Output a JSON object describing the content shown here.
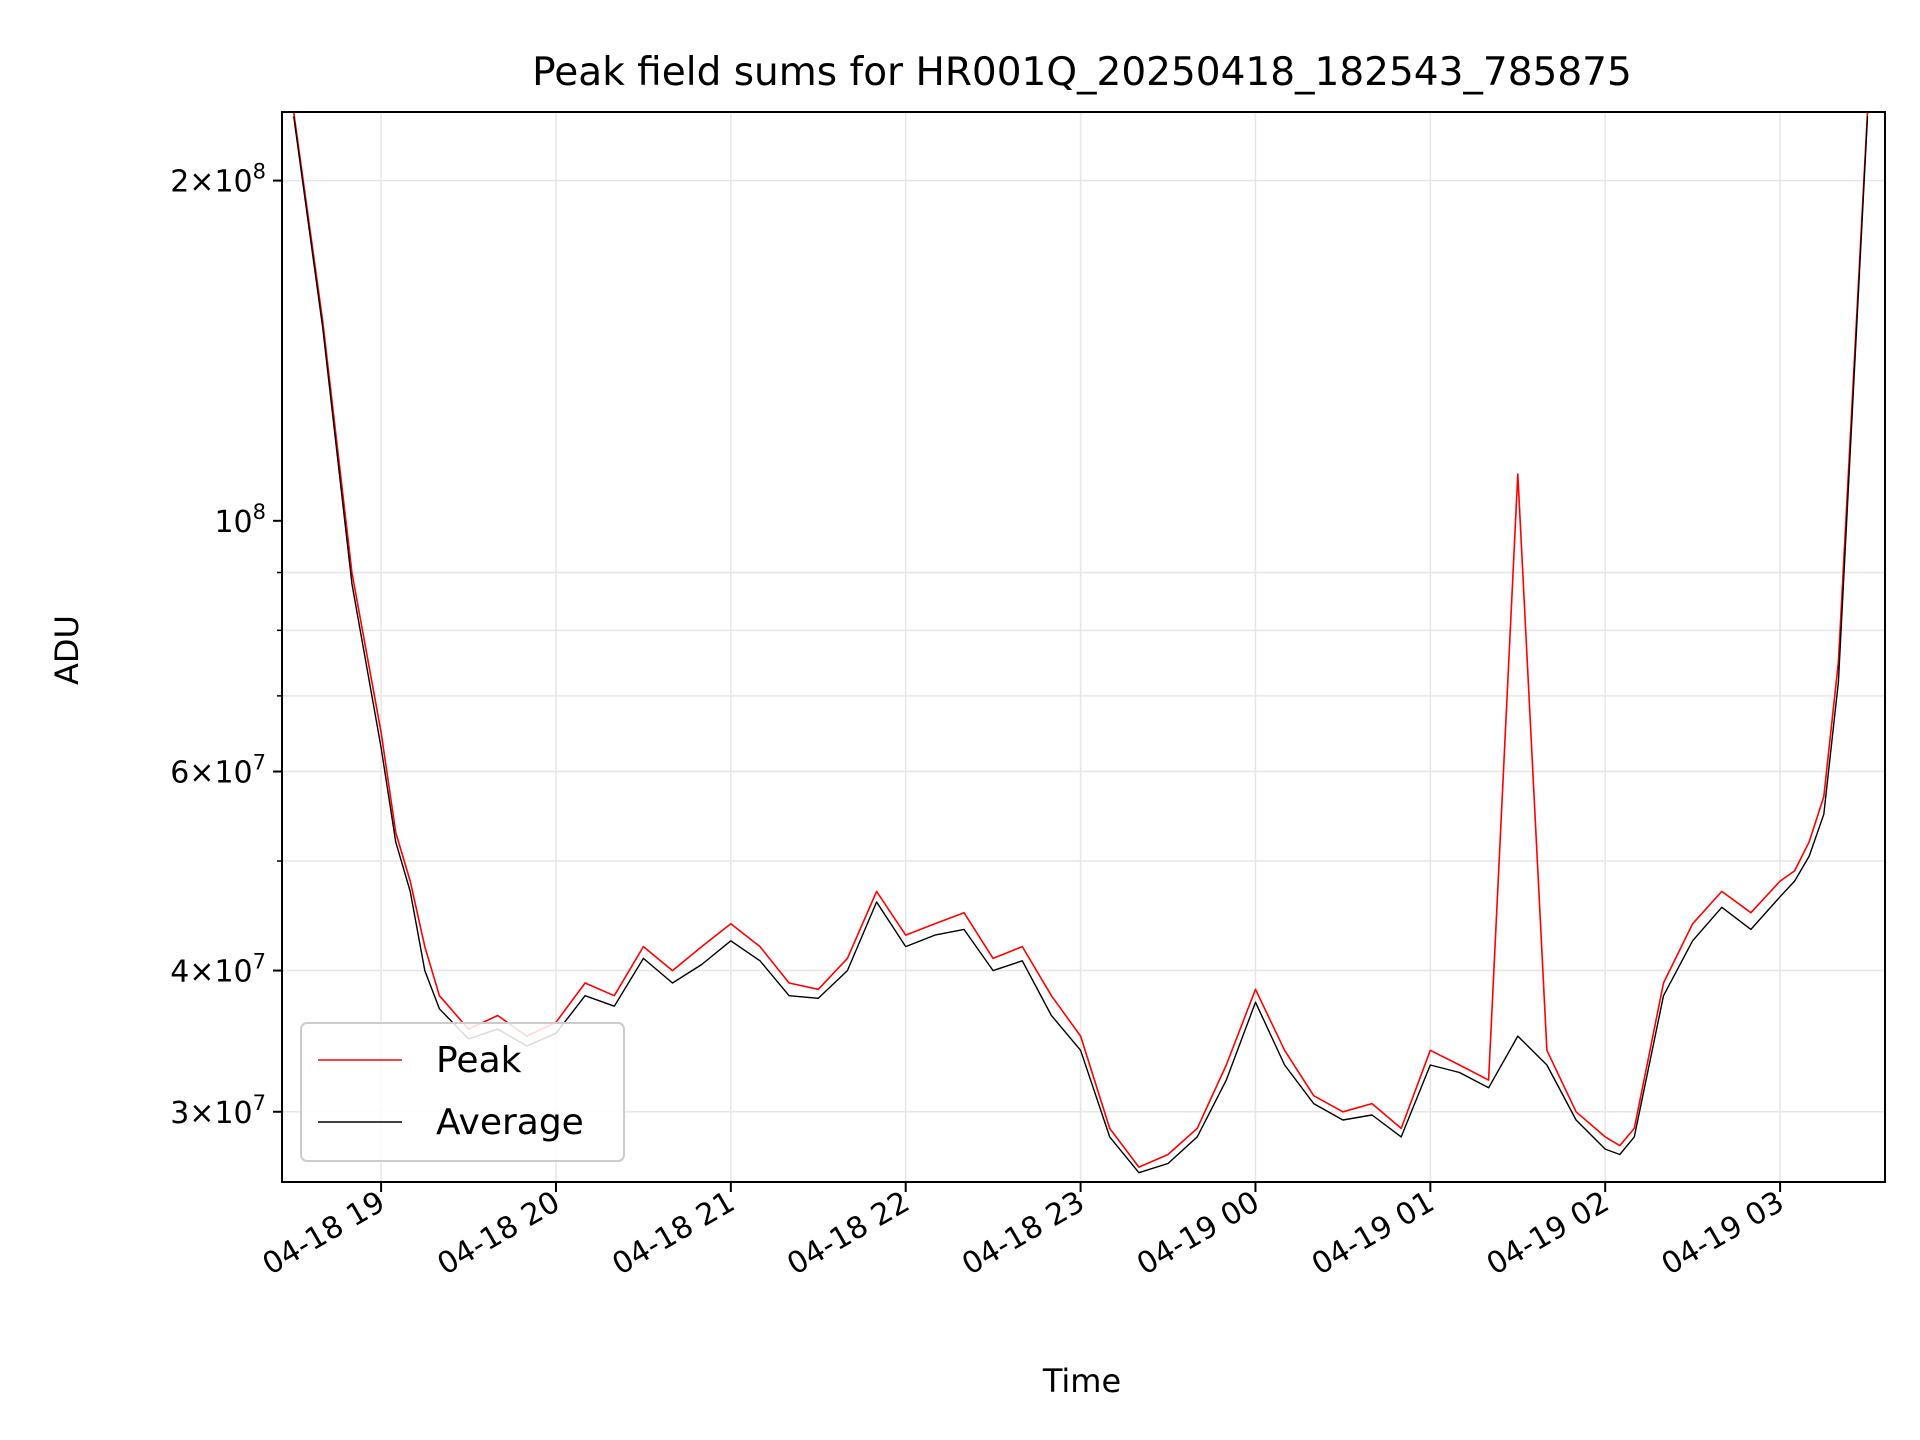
{
  "chart_data": {
    "type": "line",
    "title": "Peak field sums for HR001Q_20250418_182543_785875",
    "xlabel": "Time",
    "ylabel": "ADU",
    "y_scale": "log",
    "xlim": [
      "04-18 18:26",
      "04-19 03:36"
    ],
    "ylim": [
      26000000,
      230000000
    ],
    "grid": true,
    "legend_position": "lower-left",
    "x_ticks": [
      "04-18 19",
      "04-18 20",
      "04-18 21",
      "04-18 22",
      "04-18 23",
      "04-19 00",
      "04-19 01",
      "04-19 02",
      "04-19 03"
    ],
    "y_ticks": [
      {
        "value": 200000000,
        "mantissa": "2",
        "exp": "8"
      },
      {
        "value": 100000000,
        "mantissa": "",
        "exp": "8"
      },
      {
        "value": 60000000,
        "mantissa": "6",
        "exp": "7"
      },
      {
        "value": 40000000,
        "mantissa": "4",
        "exp": "7"
      },
      {
        "value": 30000000,
        "mantissa": "3",
        "exp": "7"
      }
    ],
    "x": [
      "04-18 18:30",
      "04-18 18:40",
      "04-18 18:50",
      "04-18 19:00",
      "04-18 19:05",
      "04-18 19:10",
      "04-18 19:15",
      "04-18 19:20",
      "04-18 19:30",
      "04-18 19:40",
      "04-18 19:50",
      "04-18 20:00",
      "04-18 20:10",
      "04-18 20:20",
      "04-18 20:30",
      "04-18 20:40",
      "04-18 20:50",
      "04-18 21:00",
      "04-18 21:10",
      "04-18 21:20",
      "04-18 21:30",
      "04-18 21:40",
      "04-18 21:50",
      "04-18 22:00",
      "04-18 22:10",
      "04-18 22:20",
      "04-18 22:30",
      "04-18 22:40",
      "04-18 22:50",
      "04-18 23:00",
      "04-18 23:10",
      "04-18 23:20",
      "04-18 23:30",
      "04-18 23:40",
      "04-18 23:50",
      "04-19 00:00",
      "04-19 00:10",
      "04-19 00:20",
      "04-19 00:30",
      "04-19 00:40",
      "04-19 00:50",
      "04-19 01:00",
      "04-19 01:10",
      "04-19 01:20",
      "04-19 01:30",
      "04-19 01:40",
      "04-19 01:50",
      "04-19 02:00",
      "04-19 02:05",
      "04-19 02:10",
      "04-19 02:20",
      "04-19 02:30",
      "04-19 02:40",
      "04-19 02:50",
      "04-19 03:00",
      "04-19 03:05",
      "04-19 03:10",
      "04-19 03:15",
      "04-19 03:20",
      "04-19 03:30"
    ],
    "series": [
      {
        "name": "Peak",
        "color": "#ff0000",
        "values": [
          230000000,
          150000000,
          90000000,
          65000000,
          53000000,
          48000000,
          42000000,
          38000000,
          35500000,
          36500000,
          35000000,
          36000000,
          39000000,
          38000000,
          42000000,
          40000000,
          42000000,
          44000000,
          42000000,
          39000000,
          38500000,
          41000000,
          47000000,
          43000000,
          44000000,
          45000000,
          41000000,
          42000000,
          38000000,
          35000000,
          29000000,
          26800000,
          27500000,
          29000000,
          33000000,
          38500000,
          34000000,
          31000000,
          30000000,
          30500000,
          29000000,
          34000000,
          33000000,
          32000000,
          110000000,
          34000000,
          30000000,
          28500000,
          28000000,
          29000000,
          39000000,
          44000000,
          47000000,
          45000000,
          48000000,
          49000000,
          52000000,
          57000000,
          75000000,
          230000000
        ]
      },
      {
        "name": "Average",
        "color": "#000000",
        "values": [
          228000000,
          148000000,
          88000000,
          63000000,
          52000000,
          47000000,
          40000000,
          37000000,
          34800000,
          35500000,
          34300000,
          35200000,
          38000000,
          37200000,
          41000000,
          39000000,
          40500000,
          42500000,
          40800000,
          38000000,
          37800000,
          40000000,
          46000000,
          42000000,
          43000000,
          43500000,
          40000000,
          40800000,
          36500000,
          34000000,
          28500000,
          26500000,
          27000000,
          28500000,
          32000000,
          37500000,
          33000000,
          30500000,
          29500000,
          29800000,
          28500000,
          33000000,
          32500000,
          31500000,
          35000000,
          33000000,
          29500000,
          27800000,
          27500000,
          28500000,
          38000000,
          42500000,
          45500000,
          43500000,
          46500000,
          48000000,
          50500000,
          55000000,
          72000000,
          228000000
        ]
      }
    ]
  }
}
